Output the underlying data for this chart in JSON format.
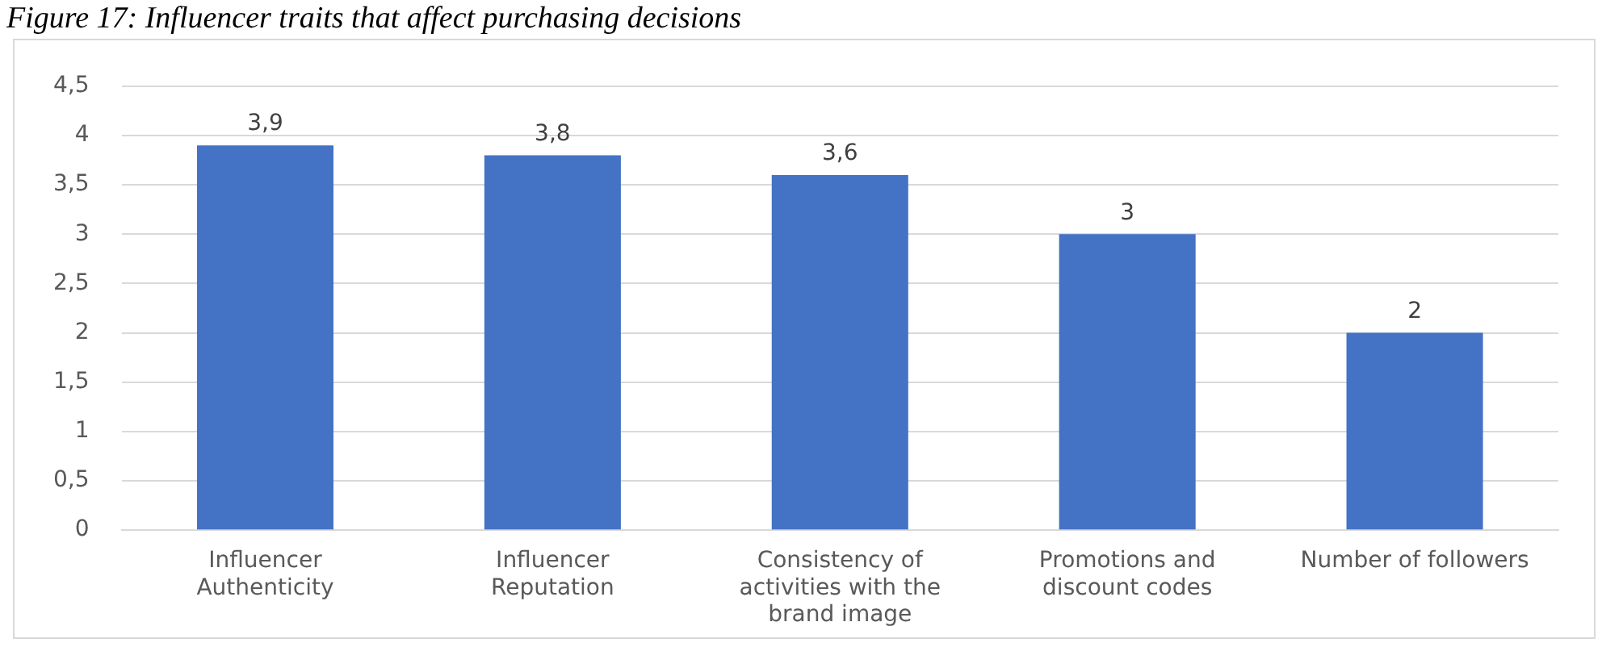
{
  "chart_data": {
    "type": "bar",
    "title": "Figure 17: Influencer traits that affect purchasing decisions",
    "categories": [
      "Influencer Authenticity",
      "Influencer Reputation",
      "Consistency of activities with the brand image",
      "Promotions and discount codes",
      "Number of followers"
    ],
    "values": [
      3.9,
      3.8,
      3.6,
      3,
      2
    ],
    "value_labels": [
      "3,9",
      "3,8",
      "3,6",
      "3",
      "2"
    ],
    "color": "#4472c4",
    "ylim": [
      0,
      4.5
    ],
    "yticks": [
      0,
      {
        "value": 0.5,
        "label": "0,5"
      },
      1,
      {
        "value": 1.5,
        "label": "1,5"
      },
      2,
      {
        "value": 2.5,
        "label": "2,5"
      },
      3,
      {
        "value": 3.5,
        "label": "3,5"
      },
      4,
      {
        "value": 4.5,
        "label": "4,5"
      }
    ],
    "grid": "y"
  }
}
